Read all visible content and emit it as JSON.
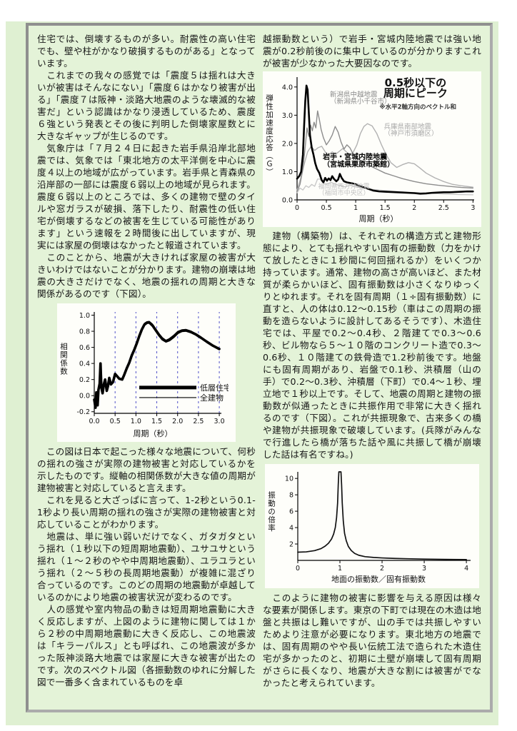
{
  "document": {
    "left_column": {
      "paragraphs": [
        "住宅では、倒壊するものが多い。耐震性の高い住宅でも、壁や柱がかなり破損するものがある」となっています。",
        "　これまでの我々の感覚では「震度５は揺れは大きいが被害はそんなにない」「震度６はかなり被害が出る」「震度７は阪神・淡路大地震のような壊滅的な被害だ」という認識はかなり浸透しているため、震度６強という発表とその後に判明した倒壊家屋数とに大きなギャップが生じるのです。",
        "　気象庁は「７月２４日に起きた岩手県沿岸北部地震では、気象では「東北地方の太平洋側を中心に震度４以上の地域が広がっています。岩手県と青森県の沿岸部の一部には震度６弱以上の地域が見られます。震度６弱以上のところでは、多くの建物で壁のタイルや窓ガラスが破損、落下したり、耐震性の低い住宅が倒壊するなどの被害を生じている可能性があります」という速報を２時間後に出していますが、現実には家屋の倒壊はなかったと報道されています。",
        "　このことから、地震が大きければ家屋の被害が大きいわけではないことが分かります。建物の崩壊は地震の大きさだけでなく、地震の揺れの周期と大きな関係があるのです（下図）。",
        "　この図は日本で起こった様々な地震について、何秒の揺れの強さが実際の建物被害と対応しているかを示したものです。縦軸の相関係数が大きな値の周期が建物被害と対応していると言えます。",
        "　これを見ると大ざっぱに言って、1-2秒という0.1-1秒より長い周期の揺れの強さが実際の建物被害と対応していることがわかります。",
        "　地震は、単に強い弱いだけでなく、ガタガタという揺れ（１秒以下の短周期地震動）、ユサユサという揺れ（１～２秒のやや中周期地震動）、ユラユラという揺れ（２～５秒の長周期地震動）が複雑に混ざり合っているのです。このどの周期の地震動が卓越しているのかにより地震の被害状況が変わるのです。",
        "　人の感覚や室内物品の動きは短周期地震動に大きく反応しますが、上図のように建物に関しては１から２秒の中周期地震動に大きく反応し、この地震波は「キラーパルス」とも呼ばれ、この地震波が多かった阪神淡路大地震では家屋に大きな被害が出たのです。次のスペクトル図（各振動数のゆれに分解した図で一番多く含まれているものを卓"
      ]
    },
    "right_column": {
      "paragraphs": [
        "越振動数という）で岩手・宮城内陸地震では強い地震が0.2秒前後のに集中しているのが分かりますこれが被害が少なかった大要因なのです。",
        "　建物（構築物）は、それぞれの構造方式と建物形態により、とても揺れやすい固有の振動数（力をかけて放したときに１秒間に何回揺れるか）をいくつか持っています。通常、建物の高さが高いほど、また材質が柔らかいほど、固有振動数は小さくなりゆっくりとゆれます。それを固有周期（１÷固有振動数）に直すと、人の体は0.12～0.15秒（車はこの周期の振動を造らないように設計してあるそうです）、木造住宅では、平屋で0.2～0.4秒、２階建てで0.3～0.6秒、ビル物なら５～１０階のコンクリート造で0.3～0.6秒、１０階建ての鉄骨造で1.2秒前後です。地盤にも固有周期があり、岩盤で0.1秒、洪積層（山の手）で0.2～0.3秒、沖積層（下町）で0.4～１秒、埋立地で１秒以上です。そして、地震の周期と建物の振動数が似通ったときに共振作用で非常に大きく揺れるのです（下図）。これが共振現象で、古来多くの橋や建物が共振現象で破壊しています。(兵隊がみんなで行進したら橋が落ちた話や風に共振して橋が崩壊した話は有名ですね。)",
        "　このように建物の被害に影響を与える原因は様々な要素が関係します。東京の下町では現在の木造は地盤と共振はし難いですが、山の手では共振しやすいためより注意が必要になります。東北地方の地震では、固有周期のやや長い伝統工法で造られた木造住宅が多かったのと、初期に土壁が崩壊して固有周期がさらに長くなり、地震が大きな割には被害がでなかったと考えられています。"
      ]
    }
  },
  "colors": {
    "page_background": "#ffffff",
    "panel_green": "#e4f3d8",
    "frame_gray": "#8f8f8f",
    "grid_blue": "#5050c8",
    "text": "#151515"
  },
  "chart_data": [
    {
      "type": "line",
      "title": "",
      "xlabel": "周期（秒）",
      "ylabel": "相関係数",
      "xlim": [
        0,
        3.05
      ],
      "ylim": [
        -0.22,
        1.04
      ],
      "xticks": [
        0,
        0.5,
        1.0,
        1.5,
        2.0,
        2.5,
        3.0
      ],
      "xtick_labels": [
        "0.0",
        "0.5",
        "1.0",
        "1.5",
        "2.0",
        "2.5",
        "3.0"
      ],
      "yticks": [
        -0.2,
        0,
        0.2,
        0.4,
        0.6,
        0.8,
        1.0
      ],
      "ytick_labels": [
        "-0.2",
        "0.0",
        "0.2",
        "0.4",
        "0.6",
        "0.8",
        "1.0"
      ],
      "grid": "v-dashed",
      "legend_position": "inside-bottom-right",
      "legend": {
        "x": 1.08,
        "y": 0.1,
        "dy": 14,
        "len": 80,
        "items": [
          {
            "label": "低層住宅",
            "stroke": "#000000",
            "width": 5
          },
          {
            "label": "全建物",
            "stroke": "#000000",
            "width": 1.2
          }
        ]
      },
      "series": [
        {
          "name": "低層住宅",
          "stroke": "#000000",
          "width": 3.6,
          "x": [
            0.0,
            0.03,
            0.05,
            0.08,
            0.1,
            0.13,
            0.15,
            0.17,
            0.2,
            0.23,
            0.26,
            0.3,
            0.33,
            0.36,
            0.4,
            0.45,
            0.5,
            0.55,
            0.6,
            0.67,
            0.72,
            0.78,
            0.84,
            0.9,
            0.96,
            1.02,
            1.08,
            1.14,
            1.2,
            1.26,
            1.32,
            1.4,
            1.48,
            1.56,
            1.64,
            1.72,
            1.8,
            1.9,
            2.0,
            2.1,
            2.2,
            2.32,
            2.44,
            2.56,
            2.7,
            2.85,
            3.0
          ],
          "y": [
            -0.05,
            -0.15,
            0.04,
            -0.12,
            0.07,
            0.15,
            0.4,
            0.1,
            0.03,
            0.14,
            0.2,
            0.06,
            0.12,
            0.22,
            0.14,
            0.17,
            0.27,
            0.24,
            0.21,
            0.2,
            0.26,
            0.34,
            0.41,
            0.5,
            0.57,
            0.65,
            0.74,
            0.82,
            0.88,
            0.905,
            0.91,
            0.87,
            0.81,
            0.75,
            0.7,
            0.675,
            0.69,
            0.73,
            0.78,
            0.805,
            0.81,
            0.79,
            0.76,
            0.72,
            0.67,
            0.62,
            0.58
          ]
        },
        {
          "name": "全建物",
          "stroke": "#000000",
          "width": 1,
          "x": [
            0.0,
            0.03,
            0.05,
            0.08,
            0.1,
            0.13,
            0.15,
            0.17,
            0.2,
            0.23,
            0.26,
            0.3,
            0.33,
            0.36,
            0.4,
            0.45,
            0.5,
            0.55,
            0.6,
            0.67,
            0.72,
            0.78,
            0.84,
            0.9,
            0.96,
            1.02,
            1.08,
            1.14,
            1.2,
            1.26,
            1.32,
            1.4,
            1.48,
            1.56,
            1.64,
            1.72,
            1.8,
            1.9,
            2.0,
            2.1,
            2.2,
            2.32,
            2.44,
            2.56,
            2.7,
            2.85,
            3.0
          ],
          "y": [
            -0.05,
            -0.14,
            0.05,
            -0.11,
            0.08,
            0.16,
            0.38,
            0.11,
            0.04,
            0.15,
            0.21,
            0.07,
            0.13,
            0.23,
            0.15,
            0.18,
            0.28,
            0.25,
            0.22,
            0.21,
            0.28,
            0.36,
            0.43,
            0.52,
            0.59,
            0.67,
            0.76,
            0.84,
            0.9,
            0.92,
            0.925,
            0.89,
            0.83,
            0.77,
            0.72,
            0.69,
            0.71,
            0.75,
            0.8,
            0.82,
            0.825,
            0.805,
            0.77,
            0.73,
            0.68,
            0.63,
            0.59
          ]
        }
      ],
      "annotations": []
    },
    {
      "type": "line",
      "title": "0.5秒以下の周期にピーク",
      "note": "※水平2軸方向のベクトル和",
      "xlabel": "周期（秒）",
      "ylabel": "弾性加速度応答（Ｇ）",
      "xlim": [
        0,
        3.02
      ],
      "ylim": [
        0,
        4.35
      ],
      "xticks": [
        0,
        0.5,
        1,
        1.5,
        2,
        2.5,
        3
      ],
      "xtick_labels": [
        "0",
        "0.5",
        "1",
        "1.5",
        "2",
        "2.5",
        "3"
      ],
      "yticks": [
        0,
        1,
        2,
        3,
        4
      ],
      "ytick_labels": [
        "0.0",
        "1.0",
        "2.0",
        "3.0",
        "4.0"
      ],
      "grid": "none",
      "series": [
        {
          "name": "福岡県西方沖地震（福岡市中央区）",
          "stroke": "#c6c6c6",
          "width": 1.3,
          "x": [
            0,
            0.05,
            0.1,
            0.15,
            0.2,
            0.25,
            0.3,
            0.35,
            0.4,
            0.45,
            0.5,
            0.58,
            0.66,
            0.74,
            0.82,
            0.9,
            1.0,
            1.15,
            1.3,
            1.5,
            1.75,
            2.0,
            2.25,
            2.5,
            2.75,
            3.0
          ],
          "y": [
            0.25,
            0.42,
            0.35,
            0.5,
            0.44,
            0.55,
            0.48,
            0.74,
            0.73,
            0.58,
            0.55,
            0.62,
            0.55,
            0.5,
            0.46,
            0.52,
            0.46,
            0.42,
            0.37,
            0.33,
            0.29,
            0.26,
            0.23,
            0.21,
            0.19,
            0.18
          ]
        },
        {
          "name": "兵庫県南部地震（神戸市須磨区）",
          "stroke": "#b2b2b2",
          "width": 1.4,
          "x": [
            0,
            0.06,
            0.12,
            0.18,
            0.24,
            0.3,
            0.36,
            0.42,
            0.48,
            0.54,
            0.6,
            0.66,
            0.72,
            0.78,
            0.84,
            0.9,
            0.96,
            1.02,
            1.08,
            1.14,
            1.2,
            1.28,
            1.36,
            1.44,
            1.52,
            1.6,
            1.7,
            1.8,
            1.9,
            2.0,
            2.1,
            2.2,
            2.35,
            2.5,
            2.65,
            2.8,
            3.0
          ],
          "y": [
            0.35,
            0.75,
            1.25,
            1.7,
            1.9,
            1.75,
            1.85,
            1.9,
            1.7,
            1.6,
            1.7,
            1.62,
            1.72,
            1.82,
            1.7,
            1.6,
            1.7,
            1.95,
            2.35,
            2.6,
            2.7,
            2.62,
            2.35,
            1.95,
            1.6,
            1.32,
            1.15,
            1.25,
            1.32,
            1.28,
            1.12,
            0.95,
            0.78,
            0.65,
            0.55,
            0.5,
            0.45
          ]
        },
        {
          "name": "新潟県中越地震（新潟県小千谷市）",
          "stroke": "#8c8c8c",
          "width": 1.4,
          "x": [
            0,
            0.05,
            0.1,
            0.14,
            0.17,
            0.2,
            0.23,
            0.26,
            0.29,
            0.32,
            0.35,
            0.38,
            0.41,
            0.45,
            0.5,
            0.55,
            0.6,
            0.65,
            0.7,
            0.75,
            0.8,
            0.85,
            0.9,
            0.95,
            1.0,
            1.1,
            1.2,
            1.35,
            1.5,
            1.65,
            1.8,
            2.0,
            2.2,
            2.4,
            2.6,
            2.8,
            3.0
          ],
          "y": [
            0.3,
            0.55,
            1.1,
            1.9,
            2.55,
            2.25,
            2.65,
            2.45,
            2.75,
            2.55,
            3.15,
            2.85,
            2.5,
            2.2,
            1.95,
            2.1,
            2.3,
            2.6,
            2.4,
            2.05,
            1.8,
            1.95,
            1.85,
            1.65,
            1.5,
            1.38,
            1.25,
            1.1,
            0.95,
            0.85,
            0.75,
            0.65,
            0.57,
            0.52,
            0.48,
            0.44,
            0.42
          ]
        },
        {
          "name": "岩手・宮城内陸地震（宮城県栗原市築館）",
          "stroke": "#000000",
          "width": 2.6,
          "x": [
            0,
            0.04,
            0.07,
            0.1,
            0.12,
            0.14,
            0.16,
            0.18,
            0.2,
            0.22,
            0.25,
            0.28,
            0.31,
            0.34,
            0.38,
            0.42,
            0.45,
            0.48,
            0.51,
            0.54,
            0.57,
            0.6,
            0.63,
            0.67,
            0.7,
            0.73,
            0.76,
            0.8,
            0.85,
            0.9,
            0.95,
            1.0,
            1.1,
            1.2,
            1.3,
            1.4,
            1.5,
            1.6,
            1.7,
            1.8,
            1.9,
            2.0,
            2.1,
            2.2,
            2.3,
            2.4,
            2.5,
            2.6,
            2.7,
            2.8,
            2.9,
            3.0
          ],
          "y": [
            0.75,
            0.85,
            1.0,
            1.6,
            2.6,
            3.5,
            4.05,
            3.9,
            3.1,
            2.3,
            1.85,
            1.6,
            1.3,
            1.1,
            0.95,
            0.7,
            0.62,
            0.78,
            0.68,
            0.76,
            0.7,
            0.84,
            0.74,
            0.66,
            0.72,
            0.92,
            0.78,
            0.66,
            0.62,
            0.6,
            0.58,
            0.55,
            0.47,
            0.4,
            0.33,
            0.3,
            0.29,
            0.28,
            0.27,
            0.26,
            0.25,
            0.24,
            0.22,
            0.23,
            0.25,
            0.26,
            0.27,
            0.27,
            0.28,
            0.29,
            0.3,
            0.3
          ]
        }
      ],
      "annotations": [
        {
          "text": "0.5秒以下の",
          "x": 2.02,
          "y": 4.02,
          "size": 15,
          "weight": "bold",
          "color": "#101010",
          "anchor": "middle"
        },
        {
          "text": "周期にピーク",
          "x": 2.02,
          "y": 3.66,
          "size": 15,
          "weight": "bold",
          "color": "#101010",
          "anchor": "middle"
        },
        {
          "text": "※水平2軸方向のベクトル和",
          "x": 2.06,
          "y": 3.22,
          "size": 8.5,
          "weight": "bold",
          "color": "#333333",
          "anchor": "middle"
        },
        {
          "text": "新潟県中越地震",
          "x": 0.56,
          "y": 3.66,
          "size": 9.5,
          "weight": "normal",
          "color": "#8c8c8c",
          "anchor": "start"
        },
        {
          "text": "（新潟県小千谷市）",
          "x": 0.56,
          "y": 3.42,
          "size": 9.5,
          "weight": "normal",
          "color": "#8c8c8c",
          "anchor": "start"
        },
        {
          "text": "兵庫県南部地震",
          "x": 1.48,
          "y": 2.52,
          "size": 9.5,
          "weight": "normal",
          "color": "#a8a8a8",
          "anchor": "start"
        },
        {
          "text": "（神戸市須磨区）",
          "x": 1.48,
          "y": 2.28,
          "size": 9.5,
          "weight": "normal",
          "color": "#a8a8a8",
          "anchor": "start"
        },
        {
          "text": "岩手・宮城内陸地震",
          "x": 0.44,
          "y": 1.44,
          "size": 10,
          "weight": "bold",
          "color": "#000000",
          "anchor": "start"
        },
        {
          "text": "（宮城県栗原市築館）",
          "x": 0.44,
          "y": 1.18,
          "size": 10,
          "weight": "bold",
          "color": "#000000",
          "anchor": "start"
        },
        {
          "text": "福岡県西方沖地震",
          "x": 0.36,
          "y": 0.4,
          "size": 9,
          "weight": "normal",
          "color": "#c2c2c2",
          "anchor": "start"
        },
        {
          "text": "（福岡市中央区）",
          "x": 0.36,
          "y": 0.18,
          "size": 9,
          "weight": "normal",
          "color": "#c2c2c2",
          "anchor": "start"
        }
      ]
    },
    {
      "type": "line",
      "title": "",
      "xlabel": "地面の振動数／固有振動数",
      "ylabel": "振動の倍率",
      "xlim": [
        0,
        4.1
      ],
      "ylim": [
        0,
        10.8
      ],
      "xticks": [
        0,
        1,
        2,
        3,
        4
      ],
      "xtick_labels": [
        "0",
        "1",
        "2",
        "3",
        "4"
      ],
      "yticks": [
        2,
        4,
        6,
        8,
        10
      ],
      "ytick_labels": [
        "2",
        "4",
        "6",
        "8",
        "10"
      ],
      "grid": "none",
      "series": [
        {
          "name": "共振曲線",
          "stroke": "#111111",
          "width": 1.7,
          "x": [
            0,
            0.2,
            0.4,
            0.55,
            0.65,
            0.73,
            0.8,
            0.85,
            0.89,
            0.92,
            0.945,
            0.96,
            0.975,
            1.0,
            1.025,
            1.04,
            1.055,
            1.08,
            1.11,
            1.15,
            1.2,
            1.27,
            1.35,
            1.45,
            1.6,
            1.8,
            2.0,
            2.3,
            2.6,
            3.0,
            3.5,
            4.0
          ],
          "y": [
            1.0,
            1.04,
            1.19,
            1.43,
            1.74,
            2.1,
            2.6,
            3.2,
            4.0,
            5.2,
            7.0,
            9.2,
            10.8,
            10.8,
            10.8,
            9.2,
            7.0,
            4.8,
            3.3,
            2.4,
            1.7,
            1.2,
            0.85,
            0.62,
            0.45,
            0.36,
            0.3,
            0.24,
            0.2,
            0.16,
            0.12,
            0.1
          ]
        }
      ],
      "annotations": []
    }
  ]
}
